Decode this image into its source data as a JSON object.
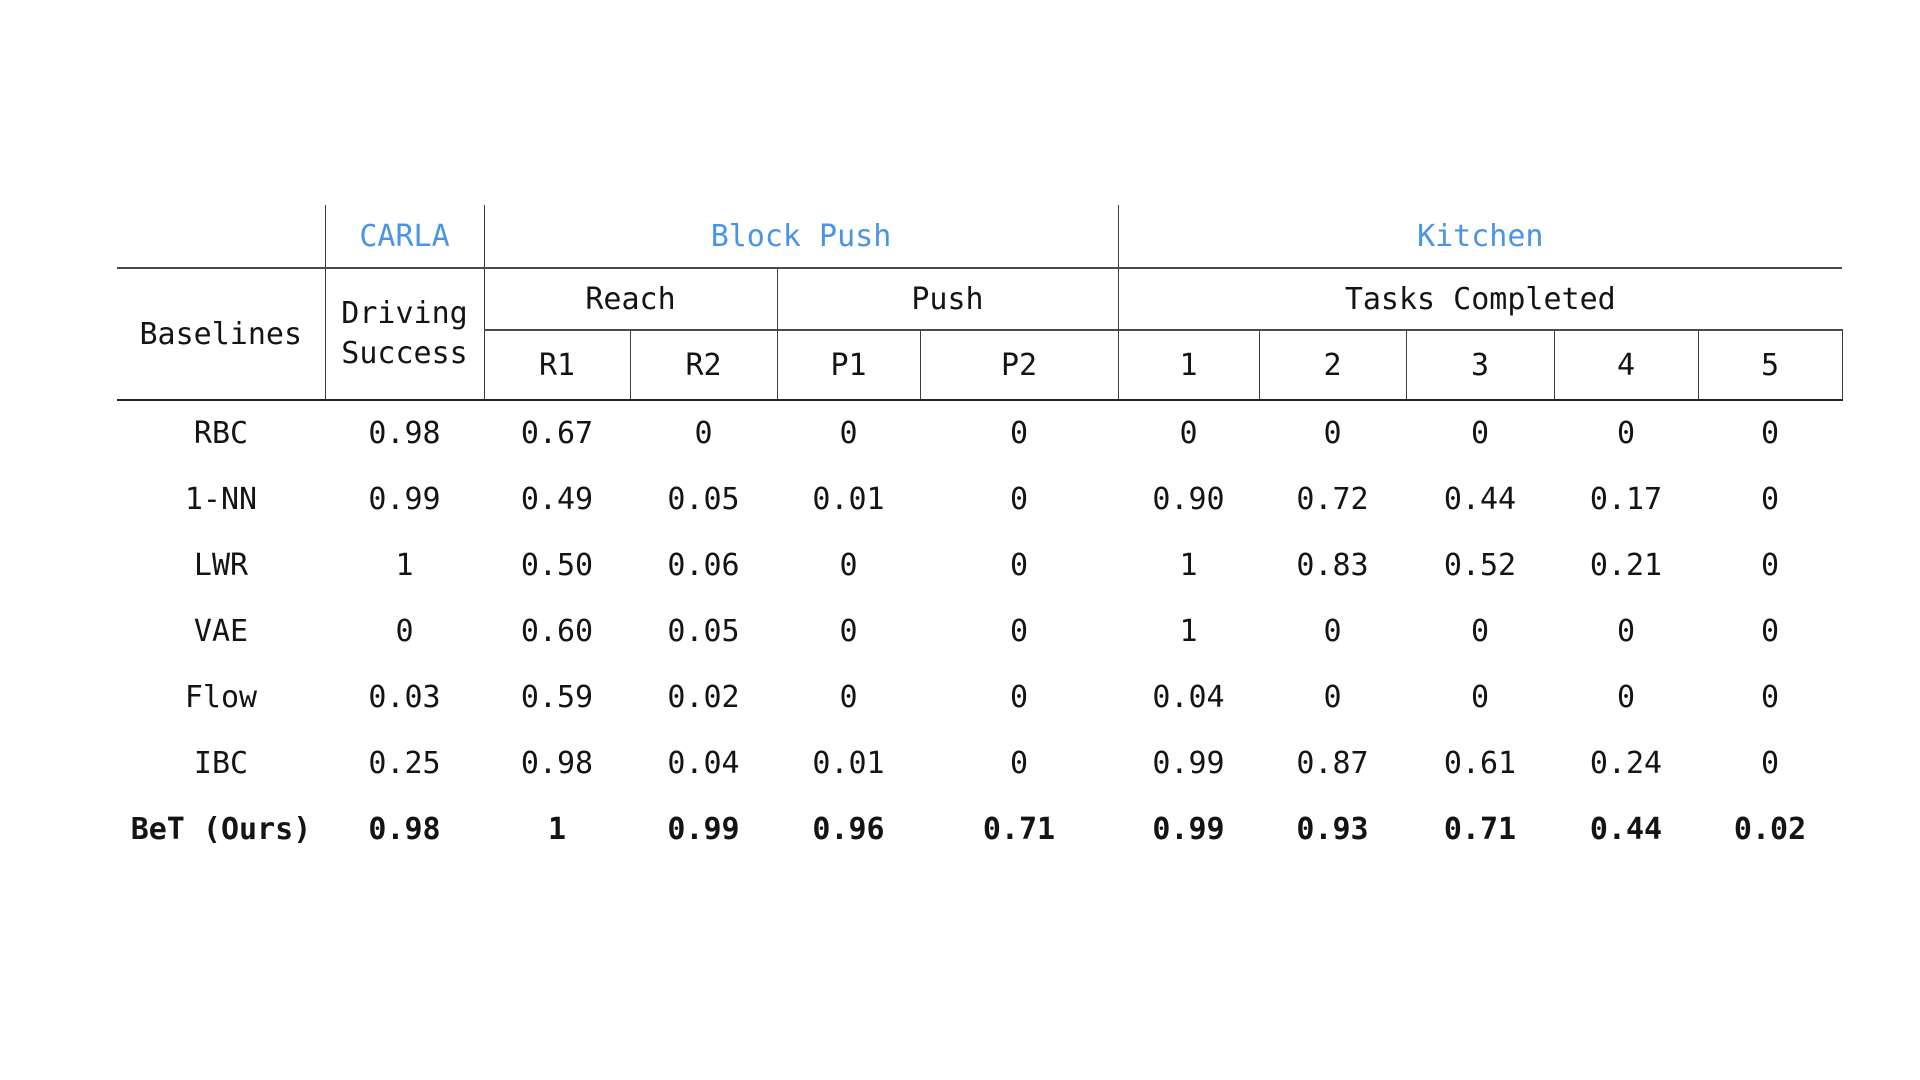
{
  "chart_data": {
    "type": "table",
    "accent_color": "#4a94e8",
    "row_header_label": "Baselines",
    "column_groups": [
      {
        "label": "CARLA",
        "span": 1
      },
      {
        "label": "Block Push",
        "span": 4
      },
      {
        "label": "Kitchen",
        "span": 5
      }
    ],
    "carla_subheader": [
      "Driving",
      "Success"
    ],
    "subgroups": [
      {
        "label": "Reach",
        "span": 2
      },
      {
        "label": "Push",
        "span": 2
      },
      {
        "label": "Tasks Completed",
        "span": 5
      }
    ],
    "columns": [
      "R1",
      "R2",
      "P1",
      "P2",
      "1",
      "2",
      "3",
      "4",
      "5"
    ],
    "rows": [
      {
        "name": "RBC",
        "bold": false,
        "values": [
          "0.98",
          "0.67",
          "0",
          "0",
          "0",
          "0",
          "0",
          "0",
          "0",
          "0"
        ]
      },
      {
        "name": "1-NN",
        "bold": false,
        "values": [
          "0.99",
          "0.49",
          "0.05",
          "0.01",
          "0",
          "0.90",
          "0.72",
          "0.44",
          "0.17",
          "0"
        ]
      },
      {
        "name": "LWR",
        "bold": false,
        "values": [
          "1",
          "0.50",
          "0.06",
          "0",
          "0",
          "1",
          "0.83",
          "0.52",
          "0.21",
          "0"
        ]
      },
      {
        "name": "VAE",
        "bold": false,
        "values": [
          "0",
          "0.60",
          "0.05",
          "0",
          "0",
          "1",
          "0",
          "0",
          "0",
          "0"
        ]
      },
      {
        "name": "Flow",
        "bold": false,
        "values": [
          "0.03",
          "0.59",
          "0.02",
          "0",
          "0",
          "0.04",
          "0",
          "0",
          "0",
          "0"
        ]
      },
      {
        "name": "IBC",
        "bold": false,
        "values": [
          "0.25",
          "0.98",
          "0.04",
          "0.01",
          "0",
          "0.99",
          "0.87",
          "0.61",
          "0.24",
          "0"
        ]
      },
      {
        "name": "BeT (Ours)",
        "bold": true,
        "values": [
          "0.98",
          "1",
          "0.99",
          "0.96",
          "0.71",
          "0.99",
          "0.93",
          "0.71",
          "0.44",
          "0.02"
        ]
      }
    ]
  }
}
